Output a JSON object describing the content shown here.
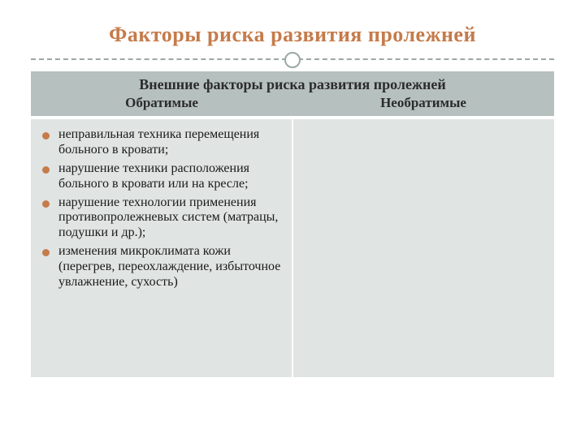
{
  "slide": {
    "title": "Факторы риска развития пролежней",
    "title_color": "#c57b4a",
    "title_fontsize": 26,
    "divider_color": "#9aa8a4",
    "table": {
      "header_bg": "#b6c0be",
      "body_bg": "#e0e4e3",
      "border_color": "#ffffff",
      "header_title": "Внешние факторы риска  развития пролежней",
      "columns": [
        "Обратимые",
        "Необратимые"
      ],
      "header_fontsize": 18,
      "bullet_color": "#c57b4a",
      "body_fontsize": 16,
      "reversible_items": [
        "неправильная техника перемещения больного в кровати;",
        "нарушение техники расположения больного в кровати или на кресле;",
        "нарушение технологии применения противопролежневых систем (матрацы, подушки и др.);",
        "изменения микроклимата кожи (перегрев, переохлаждение, избыточное увлажнение, сухость)"
      ],
      "irreversible_items": []
    }
  }
}
